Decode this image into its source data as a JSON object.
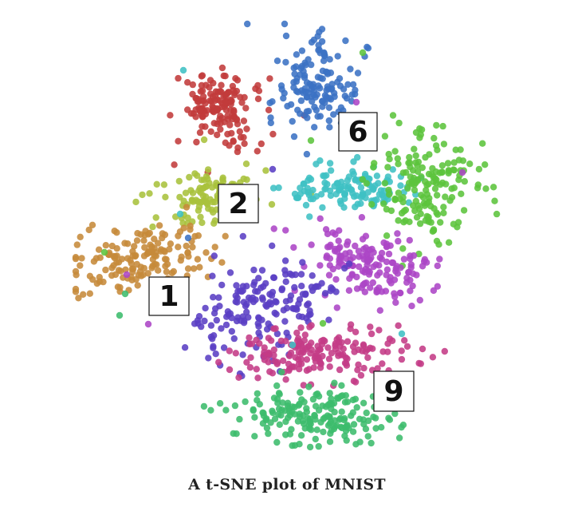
{
  "caption": "A t-SNE plot of MNIST",
  "chart_data": {
    "type": "scatter",
    "title": "A t-SNE plot of MNIST",
    "xlabel": "",
    "ylabel": "",
    "axes_visible": false,
    "grid": false,
    "legend": "none",
    "cluster_colors": {
      "red": "#c23b3b",
      "blue": "#3b72c4",
      "lime": "#a8c23c",
      "cyan": "#3fc0c4",
      "green": "#5cc43c",
      "brown": "#c68a3a",
      "purple": "#ac45c6",
      "indigo": "#5a3fc4",
      "magenta": "#c43b86",
      "emerald": "#3cbc6c"
    },
    "digit_annotations": [
      "6",
      "2",
      "1",
      "9"
    ]
  }
}
